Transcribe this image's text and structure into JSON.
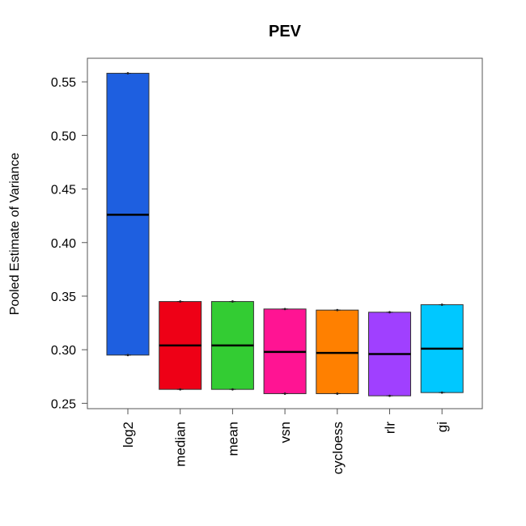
{
  "chart_data": {
    "type": "boxplot",
    "title": "PEV",
    "xlabel": "",
    "ylabel": "Pooled Estimate of Variance",
    "ylim": [
      0.245,
      0.572
    ],
    "yticks": [
      0.25,
      0.3,
      0.35,
      0.4,
      0.45,
      0.5,
      0.55
    ],
    "ytick_labels": [
      "0.25",
      "0.30",
      "0.35",
      "0.40",
      "0.45",
      "0.50",
      "0.55"
    ],
    "categories": [
      "log2",
      "median",
      "mean",
      "vsn",
      "cycloess",
      "rlr",
      "gi"
    ],
    "boxes": [
      {
        "name": "log2",
        "min": 0.295,
        "q1": 0.295,
        "median": 0.426,
        "q3": 0.558,
        "max": 0.558,
        "color": "#1E5FE0"
      },
      {
        "name": "median",
        "min": 0.263,
        "q1": 0.263,
        "median": 0.304,
        "q3": 0.345,
        "max": 0.345,
        "color": "#EE0016"
      },
      {
        "name": "mean",
        "min": 0.263,
        "q1": 0.263,
        "median": 0.304,
        "q3": 0.345,
        "max": 0.345,
        "color": "#33CC33"
      },
      {
        "name": "vsn",
        "min": 0.259,
        "q1": 0.259,
        "median": 0.298,
        "q3": 0.338,
        "max": 0.338,
        "color": "#FF1493"
      },
      {
        "name": "cycloess",
        "min": 0.259,
        "q1": 0.259,
        "median": 0.297,
        "q3": 0.337,
        "max": 0.337,
        "color": "#FF8000"
      },
      {
        "name": "rlr",
        "min": 0.257,
        "q1": 0.257,
        "median": 0.296,
        "q3": 0.335,
        "max": 0.335,
        "color": "#A040FF"
      },
      {
        "name": "gi",
        "min": 0.26,
        "q1": 0.26,
        "median": 0.301,
        "q3": 0.342,
        "max": 0.342,
        "color": "#00C8FF"
      }
    ]
  }
}
